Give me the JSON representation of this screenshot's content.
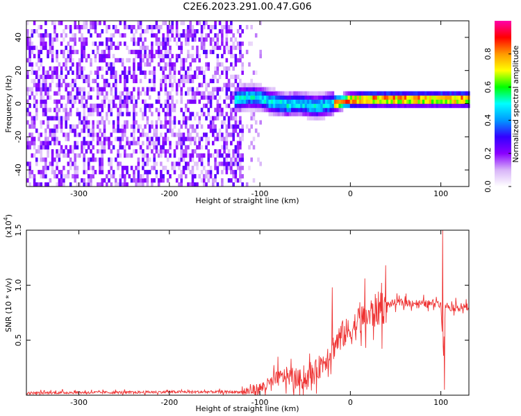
{
  "title": "C2E6.2023.291.00.47.G06",
  "chart_data": [
    {
      "type": "heatmap",
      "xlabel": "Height of straight line (km)",
      "ylabel": "Frequency (Hz)",
      "xlim": [
        -358,
        131
      ],
      "ylim": [
        -50,
        50
      ],
      "xticks": [
        -300,
        -200,
        -100,
        0,
        100
      ],
      "yticks": [
        -40,
        -20,
        0,
        20,
        40
      ],
      "ridge": {
        "x": [
          -125,
          -110,
          -100,
          -90,
          -80,
          -70,
          -60,
          -50,
          -40,
          -30,
          -20,
          -10,
          0,
          20,
          40,
          60,
          80,
          100,
          131
        ],
        "freq": [
          2,
          3,
          2,
          0,
          -1,
          -2,
          -1,
          -2,
          -3,
          -2,
          -1,
          0,
          1,
          1.5,
          1.5,
          1.5,
          1.5,
          1.5,
          1.5
        ]
      },
      "noise_region_x": [
        -358,
        -120
      ],
      "colorbar": {
        "label": "Normalized spectral amplitude",
        "range": [
          0,
          1
        ],
        "ticks": [
          "0.0",
          "0.2",
          "0.4",
          "0.6",
          "0.8"
        ],
        "tick_values": [
          0.0,
          0.2,
          0.4,
          0.6,
          0.8
        ],
        "colormap": [
          "#ffffff",
          "#d8b4f8",
          "#8a00ff",
          "#3300ff",
          "#0099ff",
          "#00ffff",
          "#00ff00",
          "#ffff00",
          "#ff9900",
          "#ff0000",
          "#ff00aa"
        ]
      }
    },
    {
      "type": "line",
      "xlabel": "Height of straight line (km)",
      "ylabel": "SNR (10 * v/v)",
      "yscale_label": "(x10",
      "yscale_exp": "4",
      "yscale_close": ")",
      "xlim": [
        -358,
        131
      ],
      "ylim": [
        0,
        1.5
      ],
      "xticks": [
        -300,
        -200,
        -100,
        0,
        100
      ],
      "yticks": [
        0.5,
        1.0,
        1.5
      ],
      "ytick_labels": [
        "0.5",
        "1.0",
        "1.5"
      ],
      "series": [
        {
          "color": "#ee3333",
          "x": [
            -358,
            -300,
            -250,
            -200,
            -150,
            -120,
            -110,
            -100,
            -90,
            -80,
            -70,
            -60,
            -50,
            -40,
            -30,
            -20,
            -10,
            0,
            10,
            20,
            30,
            40,
            50,
            60,
            70,
            80,
            90,
            95,
            100,
            103,
            105,
            110,
            120,
            131
          ],
          "y": [
            0.02,
            0.025,
            0.025,
            0.03,
            0.03,
            0.03,
            0.04,
            0.06,
            0.1,
            0.15,
            0.18,
            0.14,
            0.15,
            0.2,
            0.3,
            0.42,
            0.55,
            0.58,
            0.68,
            0.72,
            0.78,
            0.82,
            0.84,
            0.84,
            0.84,
            0.83,
            0.83,
            0.86,
            0.82,
            0.4,
            0.82,
            0.8,
            0.8,
            0.8
          ],
          "peaks": [
            {
              "x": -80,
              "y": 0.35
            },
            {
              "x": -20,
              "y": 0.98
            },
            {
              "x": 102,
              "y": 1.5
            },
            {
              "x": 104,
              "y": 0.05
            }
          ]
        }
      ]
    }
  ]
}
